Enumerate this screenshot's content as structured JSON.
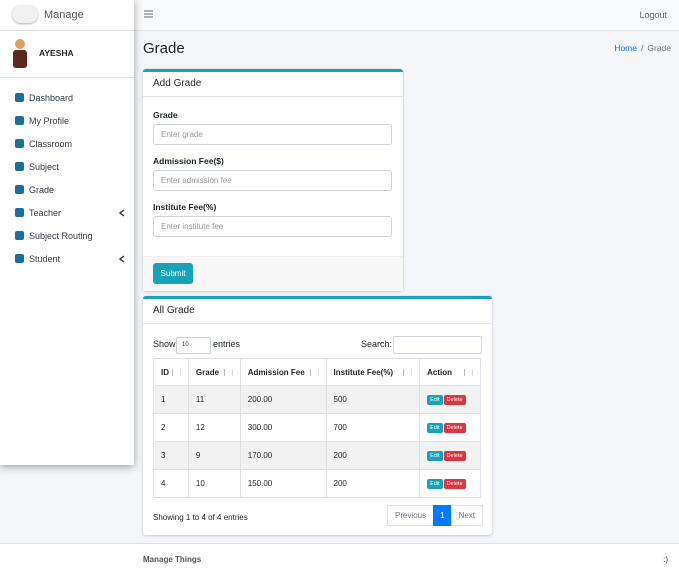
{
  "sidebar": {
    "brand": "Manage",
    "user": "AYESHA",
    "menu": [
      "Dashboard",
      "My Profile",
      "Classroom",
      "Subject",
      "Grade",
      "Teacher",
      "Subject Routing",
      "Student"
    ]
  },
  "topbar": {
    "logout": "Logout"
  },
  "header": {
    "title": "Grade",
    "breadcrumb": [
      "Home",
      "/",
      "Grade"
    ]
  },
  "form": {
    "title": "Add Grade",
    "fields": [
      {
        "label": "Grade",
        "placeholder": "Enter grade"
      },
      {
        "label": "Admission Fee($)",
        "placeholder": "Enter admission fee"
      },
      {
        "label": "Institute Fee(%)",
        "placeholder": "Enter institute fee"
      }
    ],
    "submit": "Submit"
  },
  "table": {
    "title": "All Grade",
    "show": "Show",
    "length": "10",
    "entries": "entries",
    "search": "Search:",
    "columns": [
      "ID",
      "Grade",
      "Admission Fee",
      "Institute Fee(%)",
      "Action"
    ],
    "rows": [
      [
        "1",
        "11",
        "200.00",
        "500"
      ],
      [
        "2",
        "12",
        "300.00",
        "700"
      ],
      [
        "3",
        "9",
        "170.00",
        "200"
      ],
      [
        "4",
        "10",
        "150.00",
        "200"
      ]
    ],
    "edit": "Edit",
    "delete": "Delete",
    "info": "Showing 1 to 4 of 4 entries",
    "pagination": [
      "Previous",
      "1",
      "Next"
    ]
  },
  "footer": {
    "left": "Manage Things",
    "right": ":)"
  }
}
